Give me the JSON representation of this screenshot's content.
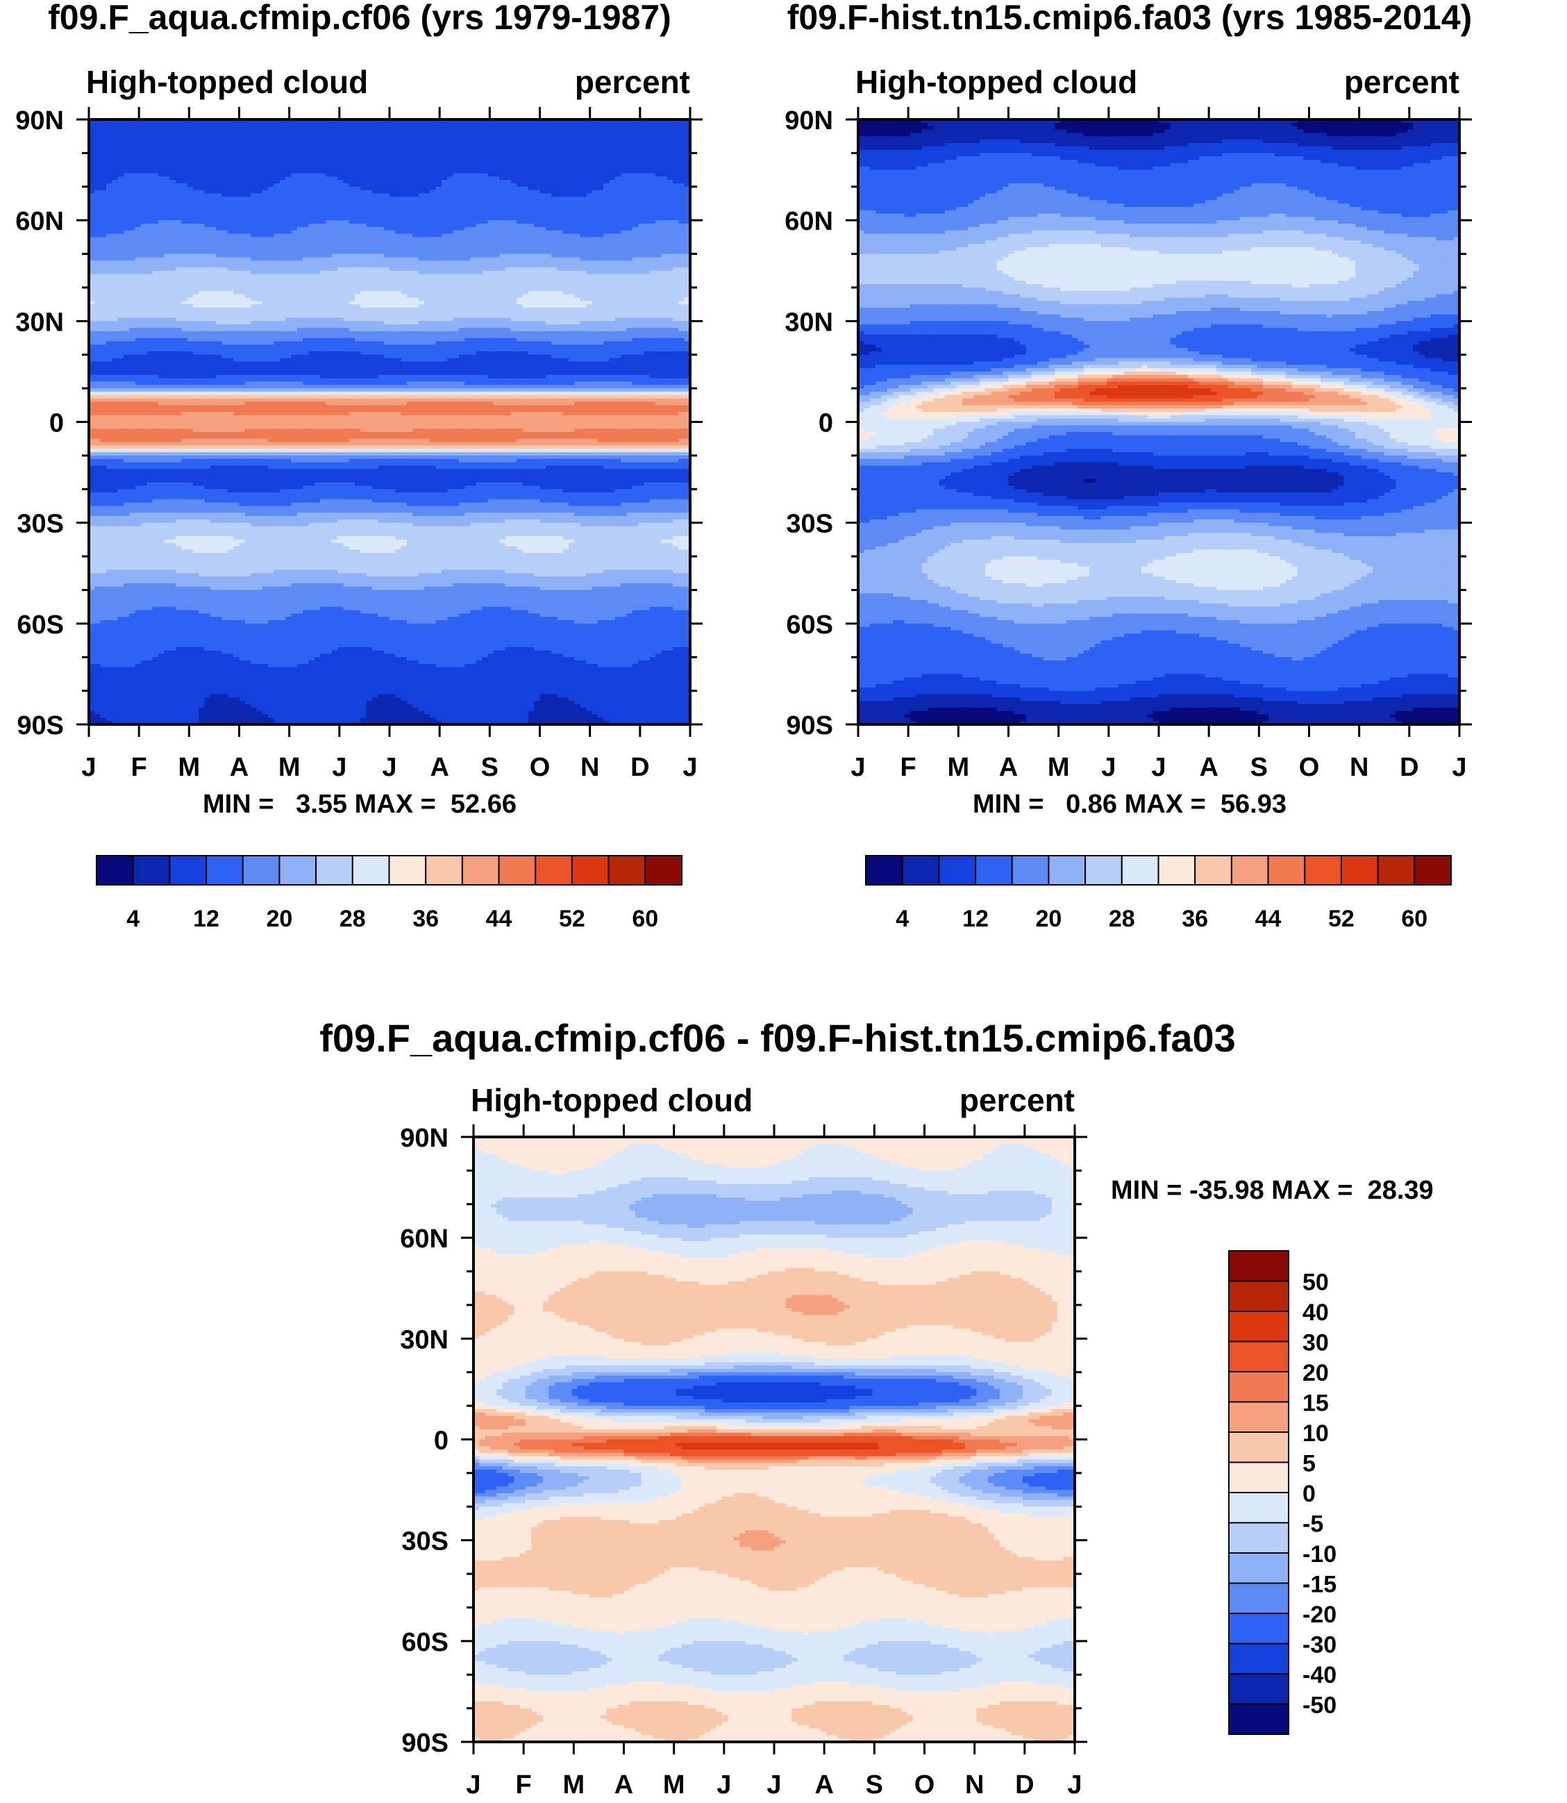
{
  "chart_data": [
    {
      "type": "heatmap",
      "title": "f09.F_aqua.cfmip.cf06 (yrs 1979-1987)",
      "left_label": "High-topped cloud",
      "right_label": "percent",
      "x_ticks": [
        "J",
        "F",
        "M",
        "A",
        "M",
        "J",
        "J",
        "A",
        "S",
        "O",
        "N",
        "D",
        "J"
      ],
      "y_ticks": [
        "90N",
        "60N",
        "30N",
        "0",
        "30S",
        "60S",
        "90S"
      ],
      "ylim": [
        -90,
        90
      ],
      "min_max_text": "MIN =   3.55 MAX =  52.66",
      "stats": {
        "min": 3.55,
        "max": 52.66
      },
      "colorbar_labels": [
        "4",
        "12",
        "20",
        "28",
        "36",
        "44",
        "52",
        "60"
      ],
      "levels": [
        4,
        8,
        12,
        16,
        20,
        24,
        28,
        32,
        36,
        40,
        44,
        48,
        52,
        56,
        60
      ],
      "zonal_profile": {
        "lat": [
          -90,
          -80,
          -70,
          -60,
          -50,
          -45,
          -40,
          -35,
          -30,
          -25,
          -20,
          -15,
          -10,
          -7,
          -4,
          -2,
          0,
          2,
          4,
          7,
          10,
          15,
          20,
          25,
          30,
          35,
          40,
          45,
          50,
          60,
          70,
          80,
          90
        ],
        "value": [
          8,
          9,
          12,
          15,
          19,
          24,
          27,
          28,
          24,
          17,
          12,
          10,
          18,
          42,
          46,
          44,
          40,
          44,
          46,
          42,
          18,
          10,
          12,
          17,
          24,
          28,
          27,
          24,
          19,
          15,
          12,
          10,
          9
        ]
      }
    },
    {
      "type": "heatmap",
      "title": "f09.F-hist.tn15.cmip6.fa03 (yrs 1985-2014)",
      "left_label": "High-topped cloud",
      "right_label": "percent",
      "x_ticks": [
        "J",
        "F",
        "M",
        "A",
        "M",
        "J",
        "J",
        "A",
        "S",
        "O",
        "N",
        "D",
        "J"
      ],
      "y_ticks": [
        "90N",
        "60N",
        "30N",
        "0",
        "30S",
        "60S",
        "90S"
      ],
      "ylim": [
        -90,
        90
      ],
      "min_max_text": "MIN =   0.86 MAX =  56.93",
      "stats": {
        "min": 0.86,
        "max": 56.93
      },
      "colorbar_labels": [
        "4",
        "12",
        "20",
        "28",
        "36",
        "44",
        "52",
        "60"
      ],
      "levels": [
        4,
        8,
        12,
        16,
        20,
        24,
        28,
        32,
        36,
        40,
        44,
        48,
        52,
        56,
        60
      ]
    },
    {
      "type": "heatmap",
      "title": "f09.F_aqua.cfmip.cf06 - f09.F-hist.tn15.cmip6.fa03",
      "left_label": "High-topped cloud",
      "right_label": "percent",
      "x_ticks": [
        "J",
        "F",
        "M",
        "A",
        "M",
        "J",
        "J",
        "A",
        "S",
        "O",
        "N",
        "D",
        "J"
      ],
      "y_ticks": [
        "90N",
        "60N",
        "30N",
        "0",
        "30S",
        "60S",
        "90S"
      ],
      "ylim": [
        -90,
        90
      ],
      "min_max_text": "MIN = -35.98 MAX =  28.39",
      "stats": {
        "min": -35.98,
        "max": 28.39
      },
      "colorbar_labels": [
        "50",
        "40",
        "30",
        "20",
        "15",
        "10",
        "5",
        "0",
        "-5",
        "-10",
        "-15",
        "-20",
        "-30",
        "-40",
        "-50"
      ],
      "levels": [
        -50,
        -40,
        -30,
        -20,
        -15,
        -10,
        -5,
        0,
        5,
        10,
        15,
        20,
        30,
        40,
        50
      ]
    }
  ],
  "colors": {
    "seq": [
      "#08097a",
      "#0c26b0",
      "#1440dd",
      "#2e62f5",
      "#5d8bf5",
      "#8fb1f7",
      "#b7cef9",
      "#dce9fb",
      "#fce9dc",
      "#f9c7aa",
      "#f5a17f",
      "#f17a52",
      "#ec5427",
      "#dd380f",
      "#b82608",
      "#8a0b05"
    ],
    "div": [
      "#08097a",
      "#0c26b0",
      "#1440dd",
      "#2e62f5",
      "#5d8bf5",
      "#8fb1f7",
      "#b7cef9",
      "#dce9fb",
      "#fce9dc",
      "#f9c7aa",
      "#f5a17f",
      "#f17a52",
      "#ec5427",
      "#dd380f",
      "#b82608",
      "#8a0b05"
    ]
  }
}
